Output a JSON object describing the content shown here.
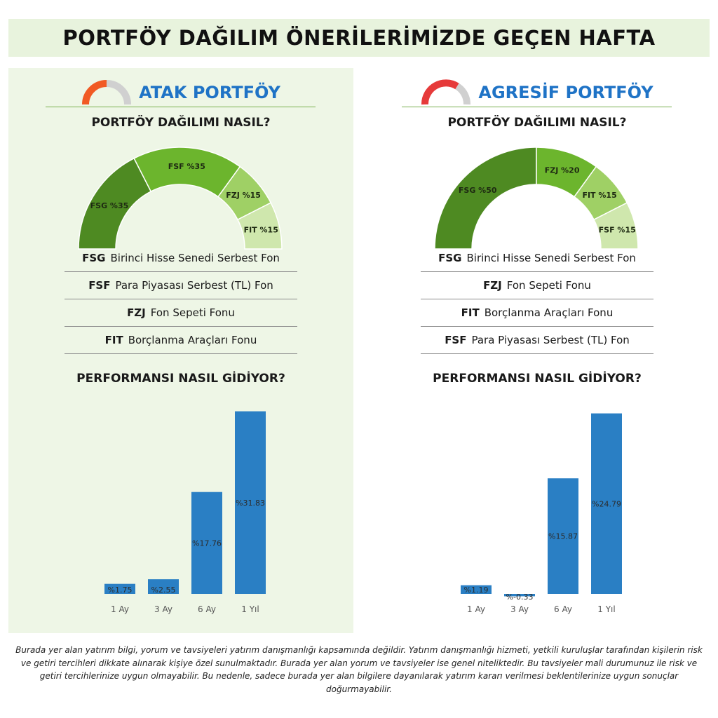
{
  "header": {
    "title": "PORTFÖY DAĞILIM ÖNERİLERİMİZDE GEÇEN HAFTA"
  },
  "colors": {
    "blue": "#1f73c6",
    "bar": "#2a7fc4",
    "panel_bg": "#eef6e6",
    "banner_bg": "#e8f3dd"
  },
  "portfolios": [
    {
      "title": "ATAK PORTFÖY",
      "gauge_icon": "gauge-icon-orange",
      "gauge_color": "#f15a24",
      "allocation_question": "PORTFÖY DAĞILIMI NASIL?",
      "legend": [
        {
          "code": "FSG",
          "name": "Birinci Hisse Senedi Serbest Fon"
        },
        {
          "code": "FSF",
          "name": "Para Piyasası Serbest (TL) Fon"
        },
        {
          "code": "FZJ",
          "name": "Fon Sepeti Fonu"
        },
        {
          "code": "FIT",
          "name": "Borçlanma Araçları Fonu"
        }
      ],
      "performance_question": "PERFORMANSI NASIL GİDİYOR?"
    },
    {
      "title": "AGRESİF PORTFÖY",
      "gauge_icon": "gauge-icon-red",
      "gauge_color": "#e63a3a",
      "allocation_question": "PORTFÖY DAĞILIMI NASIL?",
      "legend": [
        {
          "code": "FSG",
          "name": "Birinci Hisse Senedi Serbest Fon"
        },
        {
          "code": "FZJ",
          "name": "Fon Sepeti Fonu"
        },
        {
          "code": "FIT",
          "name": "Borçlanma Araçları Fonu"
        },
        {
          "code": "FSF",
          "name": "Para Piyasası Serbest (TL) Fon"
        }
      ],
      "performance_question": "PERFORMANSI NASIL GİDİYOR?"
    }
  ],
  "chart_data": [
    {
      "type": "pie",
      "style": "semi-donut",
      "labels": [
        "FSG %35",
        "FSF %35",
        "FZJ %15",
        "FIT %15"
      ],
      "values": [
        35,
        35,
        15,
        15
      ],
      "colors": [
        "#4e8a22",
        "#6cb52d",
        "#9fd065",
        "#cfe7ad"
      ]
    },
    {
      "type": "bar",
      "categories": [
        "1 Ay",
        "3 Ay",
        "6 Ay",
        "1 Yıl"
      ],
      "values": [
        1.75,
        2.55,
        17.76,
        31.83
      ],
      "data_labels": [
        "%1.75",
        "%2.55",
        "%17.76",
        "%31.83"
      ],
      "ylim": [
        -1,
        33
      ],
      "grid": false,
      "color": "#2a7fc4"
    },
    {
      "type": "pie",
      "style": "semi-donut",
      "labels": [
        "FSG %50",
        "FZJ %20",
        "FIT %15",
        "FSF %15"
      ],
      "values": [
        50,
        20,
        15,
        15
      ],
      "colors": [
        "#4e8a22",
        "#6cb52d",
        "#9fd065",
        "#cfe7ad"
      ]
    },
    {
      "type": "bar",
      "categories": [
        "1 Ay",
        "3 Ay",
        "6 Ay",
        "1 Yıl"
      ],
      "values": [
        1.19,
        -0.33,
        15.87,
        24.79
      ],
      "data_labels": [
        "%1.19",
        "%-0.33",
        "%15.87",
        "%24.79"
      ],
      "ylim": [
        -1,
        26
      ],
      "grid": false,
      "color": "#2a7fc4"
    }
  ],
  "disclaimer": "Burada yer alan yatırım bilgi, yorum ve tavsiyeleri yatırım danışmanlığı kapsamında değildir. Yatırım danışmanlığı hizmeti, yetkili kuruluşlar tarafından kişilerin risk ve getiri tercihleri dikkate alınarak kişiye özel sunulmaktadır. Burada yer alan yorum ve tavsiyeler ise genel niteliktedir. Bu tavsiyeler mali durumunuz ile risk ve getiri tercihlerinize uygun olmayabilir. Bu nedenle, sadece burada yer alan bilgilere dayanılarak yatırım kararı verilmesi beklentilerinize uygun sonuçlar doğurmayabilir."
}
